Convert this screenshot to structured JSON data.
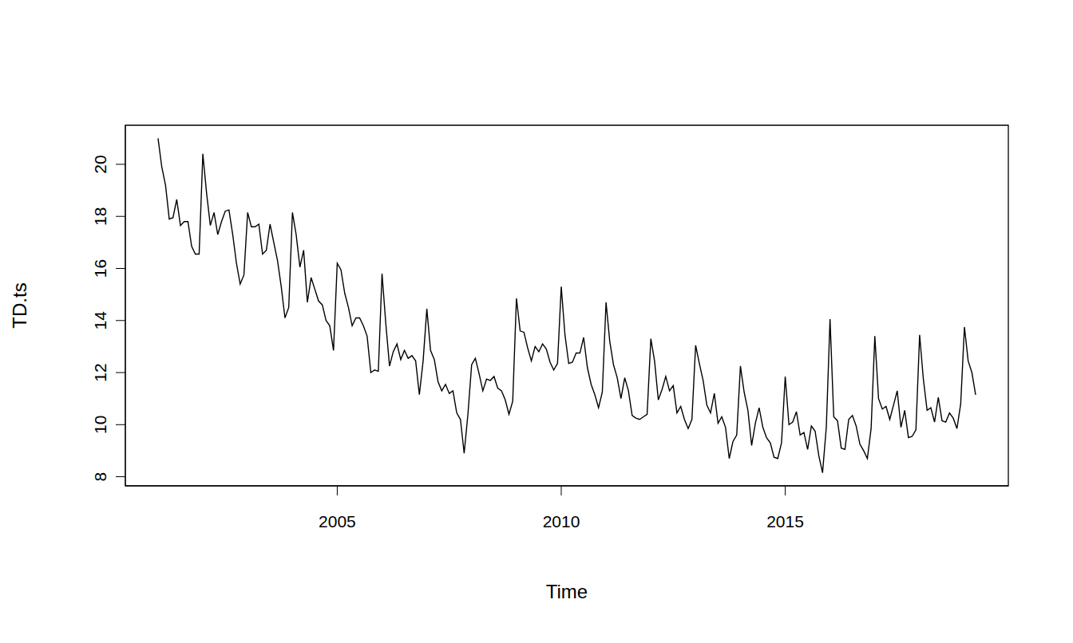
{
  "chart_data": {
    "type": "line",
    "x_label": "Time",
    "y_label": "TD.ts",
    "color": "#000000",
    "grid": false,
    "x": [
      2001,
      2001.083,
      2001.167,
      2001.25,
      2001.333,
      2001.417,
      2001.5,
      2001.583,
      2001.667,
      2001.75,
      2001.833,
      2001.917,
      2002,
      2002.083,
      2002.167,
      2002.25,
      2002.333,
      2002.417,
      2002.5,
      2002.583,
      2002.667,
      2002.75,
      2002.833,
      2002.917,
      2003,
      2003.083,
      2003.167,
      2003.25,
      2003.333,
      2003.417,
      2003.5,
      2003.583,
      2003.667,
      2003.75,
      2003.833,
      2003.917,
      2004,
      2004.083,
      2004.167,
      2004.25,
      2004.333,
      2004.417,
      2004.5,
      2004.583,
      2004.667,
      2004.75,
      2004.833,
      2004.917,
      2005,
      2005.083,
      2005.167,
      2005.25,
      2005.333,
      2005.417,
      2005.5,
      2005.583,
      2005.667,
      2005.75,
      2005.833,
      2005.917,
      2006,
      2006.083,
      2006.167,
      2006.25,
      2006.333,
      2006.417,
      2006.5,
      2006.583,
      2006.667,
      2006.75,
      2006.833,
      2006.917,
      2007,
      2007.083,
      2007.167,
      2007.25,
      2007.333,
      2007.417,
      2007.5,
      2007.583,
      2007.667,
      2007.75,
      2007.833,
      2007.917,
      2008,
      2008.083,
      2008.167,
      2008.25,
      2008.333,
      2008.417,
      2008.5,
      2008.583,
      2008.667,
      2008.75,
      2008.833,
      2008.917,
      2009,
      2009.083,
      2009.167,
      2009.25,
      2009.333,
      2009.417,
      2009.5,
      2009.583,
      2009.667,
      2009.75,
      2009.833,
      2009.917,
      2010,
      2010.083,
      2010.167,
      2010.25,
      2010.333,
      2010.417,
      2010.5,
      2010.583,
      2010.667,
      2010.75,
      2010.833,
      2010.917,
      2011,
      2011.083,
      2011.167,
      2011.25,
      2011.333,
      2011.417,
      2011.5,
      2011.583,
      2011.667,
      2011.75,
      2011.833,
      2011.917,
      2012,
      2012.083,
      2012.167,
      2012.25,
      2012.333,
      2012.417,
      2012.5,
      2012.583,
      2012.667,
      2012.75,
      2012.833,
      2012.917,
      2013,
      2013.083,
      2013.167,
      2013.25,
      2013.333,
      2013.417,
      2013.5,
      2013.583,
      2013.667,
      2013.75,
      2013.833,
      2013.917,
      2014,
      2014.083,
      2014.167,
      2014.25,
      2014.333,
      2014.417,
      2014.5,
      2014.583,
      2014.667,
      2014.75,
      2014.833,
      2014.917,
      2015,
      2015.083,
      2015.167,
      2015.25,
      2015.333,
      2015.417,
      2015.5,
      2015.583,
      2015.667,
      2015.75,
      2015.833,
      2015.917,
      2016,
      2016.083,
      2016.167,
      2016.25,
      2016.333,
      2016.417,
      2016.5,
      2016.583,
      2016.667,
      2016.75,
      2016.833,
      2016.917,
      2017,
      2017.083,
      2017.167,
      2017.25,
      2017.333,
      2017.417,
      2017.5,
      2017.583,
      2017.667,
      2017.75,
      2017.833,
      2017.917,
      2018,
      2018.083,
      2018.167,
      2018.25,
      2018.333,
      2018.417,
      2018.5,
      2018.583,
      2018.667,
      2018.75,
      2018.833,
      2018.917,
      2019,
      2019.083,
      2019.167,
      2019.25
    ],
    "values": [
      21.0,
      19.9,
      19.2,
      17.9,
      17.95,
      18.65,
      17.65,
      17.8,
      17.8,
      16.85,
      16.55,
      16.55,
      20.4,
      18.9,
      17.65,
      18.15,
      17.3,
      17.8,
      18.2,
      18.25,
      17.3,
      16.2,
      15.4,
      15.75,
      18.15,
      17.6,
      17.6,
      17.7,
      16.55,
      16.7,
      17.7,
      17.0,
      16.3,
      15.3,
      14.1,
      14.5,
      18.15,
      17.3,
      16.05,
      16.7,
      14.7,
      15.65,
      15.2,
      14.75,
      14.6,
      14.0,
      13.8,
      12.85,
      16.2,
      15.95,
      15.05,
      14.5,
      13.8,
      14.1,
      14.1,
      13.8,
      13.4,
      12.0,
      12.1,
      12.05,
      15.8,
      13.9,
      12.25,
      12.8,
      13.1,
      12.5,
      12.85,
      12.55,
      12.65,
      12.45,
      11.15,
      12.45,
      14.45,
      12.85,
      12.5,
      11.65,
      11.3,
      11.55,
      11.2,
      11.3,
      10.45,
      10.2,
      8.9,
      10.4,
      12.3,
      12.55,
      11.95,
      11.3,
      11.75,
      11.7,
      11.85,
      11.4,
      11.3,
      10.95,
      10.4,
      10.9,
      14.85,
      13.6,
      13.55,
      12.95,
      12.45,
      13.0,
      12.8,
      13.1,
      12.9,
      12.4,
      12.1,
      12.35,
      15.3,
      13.45,
      12.35,
      12.4,
      12.75,
      12.75,
      13.35,
      12.2,
      11.55,
      11.15,
      10.65,
      11.25,
      14.7,
      13.2,
      12.3,
      11.8,
      11.0,
      11.8,
      11.3,
      10.35,
      10.25,
      10.2,
      10.3,
      10.4,
      13.3,
      12.45,
      10.95,
      11.35,
      11.85,
      11.3,
      11.5,
      10.45,
      10.7,
      10.2,
      9.85,
      10.2,
      13.05,
      12.35,
      11.7,
      10.75,
      10.45,
      11.2,
      10.05,
      10.3,
      9.9,
      8.7,
      9.35,
      9.6,
      12.25,
      11.25,
      10.55,
      9.2,
      10.05,
      10.65,
      9.9,
      9.5,
      9.3,
      8.75,
      8.7,
      9.3,
      11.85,
      10.0,
      10.1,
      10.5,
      9.6,
      9.7,
      9.05,
      9.95,
      9.75,
      8.8,
      8.15,
      9.9,
      14.05,
      10.3,
      10.15,
      9.1,
      9.05,
      10.2,
      10.35,
      9.95,
      9.25,
      9.0,
      8.7,
      9.85,
      13.4,
      11.0,
      10.6,
      10.7,
      10.2,
      10.75,
      11.3,
      9.9,
      10.55,
      9.5,
      9.55,
      9.8,
      13.45,
      11.75,
      10.55,
      10.65,
      10.1,
      11.05,
      10.15,
      10.1,
      10.45,
      10.25,
      9.85,
      10.8,
      13.75,
      12.45,
      12.0,
      11.15
    ],
    "xlim": [
      2000.27,
      2019.98
    ],
    "xticks": [
      2005,
      2010,
      2015
    ],
    "ylim": [
      7.65,
      21.5
    ],
    "yticks": [
      8,
      10,
      12,
      14,
      16,
      18,
      20
    ]
  }
}
